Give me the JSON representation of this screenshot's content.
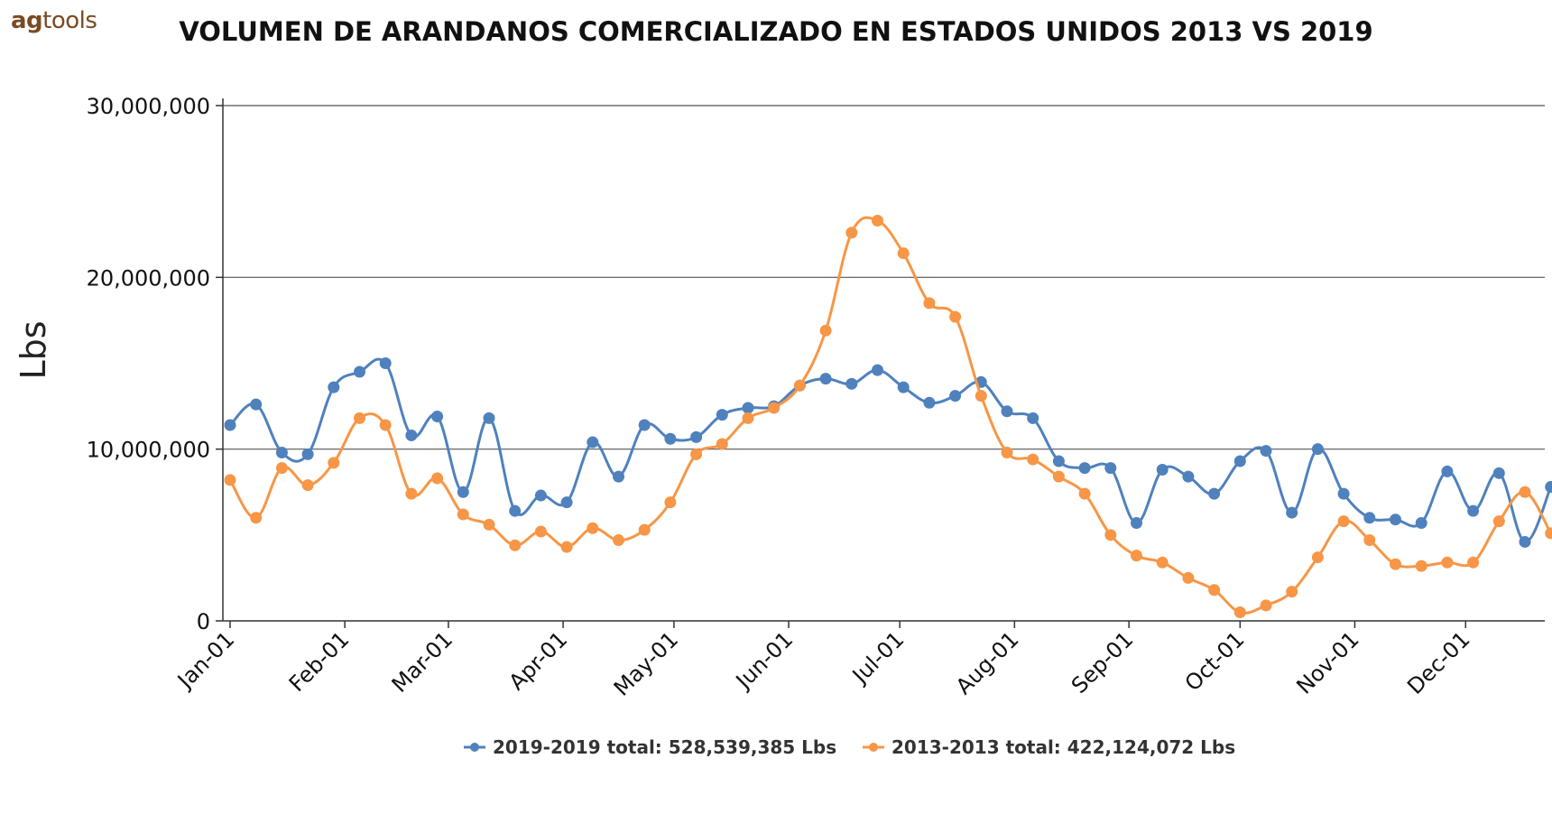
{
  "brand": {
    "prefix": "ag",
    "suffix": "tools"
  },
  "chart_data": {
    "type": "line",
    "title": "VOLUMEN DE ARANDANOS COMERCIALIZADO EN ESTADOS UNIDOS 2013 VS 2019",
    "ylabel": "Lbs",
    "ylim": [
      0,
      30000000
    ],
    "yticks": [
      0,
      10000000,
      20000000,
      30000000
    ],
    "ytick_labels": [
      "0",
      "10,000,000",
      "20,000,000",
      "30,000,000"
    ],
    "xtick_labels": [
      "Jan-01",
      "Feb-01",
      "Mar-01",
      "Apr-01",
      "May-01",
      "Jun-01",
      "Jul-01",
      "Aug-01",
      "Sep-01",
      "Oct-01",
      "Nov-01",
      "Dec-01"
    ],
    "xtick_week_index": [
      0,
      4.43,
      8.43,
      12.86,
      17.14,
      21.57,
      25.86,
      30.29,
      34.71,
      39,
      43.43,
      47.71
    ],
    "grid": true,
    "legend_position": "bottom-center",
    "colors": {
      "series1": "#4f81bd",
      "series2": "#f79646"
    },
    "series": [
      {
        "name": "2019-2019 total: 528,539,385 Lbs",
        "values": [
          11400000,
          12600000,
          9800000,
          9700000,
          13600000,
          14500000,
          15000000,
          10800000,
          11900000,
          7500000,
          11800000,
          6400000,
          7300000,
          6900000,
          10400000,
          8400000,
          11400000,
          10600000,
          10700000,
          12000000,
          12400000,
          12500000,
          13700000,
          14100000,
          13800000,
          14600000,
          13600000,
          12700000,
          13100000,
          13900000,
          12200000,
          11800000,
          9300000,
          8900000,
          8900000,
          5700000,
          8800000,
          8400000,
          7400000,
          9300000,
          9900000,
          6300000,
          10000000,
          7400000,
          6000000,
          5900000,
          5700000,
          8700000,
          6400000,
          8600000,
          4600000,
          7800000
        ]
      },
      {
        "name": "2013-2013 total: 422,124,072 Lbs",
        "values": [
          8200000,
          6000000,
          8900000,
          7900000,
          9200000,
          11800000,
          11400000,
          7400000,
          8300000,
          6200000,
          5600000,
          4400000,
          5200000,
          4300000,
          5400000,
          4700000,
          5300000,
          6900000,
          9700000,
          10300000,
          11800000,
          12400000,
          13700000,
          16900000,
          22600000,
          23300000,
          21400000,
          18500000,
          17700000,
          13100000,
          9800000,
          9400000,
          8400000,
          7400000,
          5000000,
          3800000,
          3400000,
          2500000,
          1800000,
          500000,
          900000,
          1700000,
          3700000,
          5800000,
          4700000,
          3300000,
          3200000,
          3400000,
          3400000,
          5800000,
          7500000,
          5100000
        ]
      }
    ]
  }
}
